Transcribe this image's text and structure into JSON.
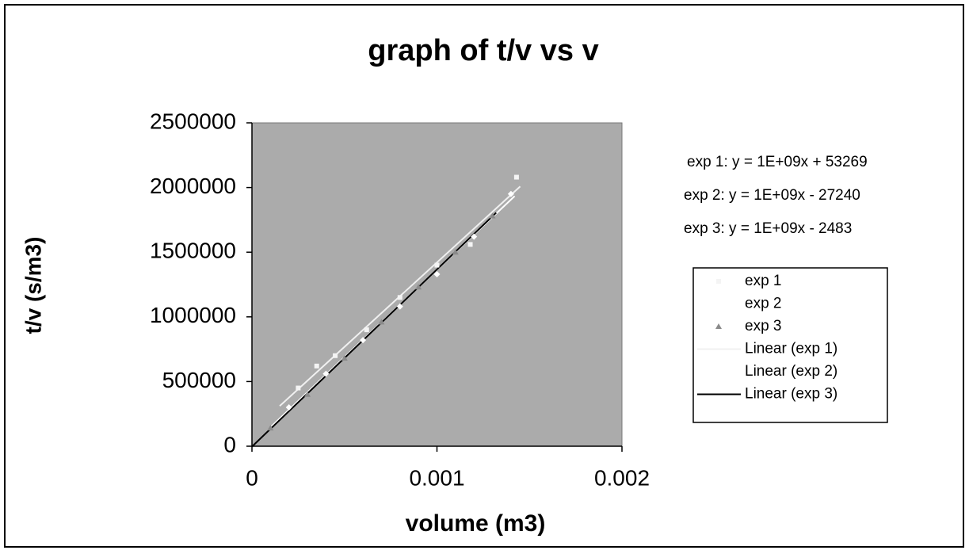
{
  "chart_data": {
    "type": "scatter",
    "title": "graph of t/v vs v",
    "x_label": "volume (m3)",
    "y_label": "t/v (s/m3)",
    "xlim": [
      0,
      0.002
    ],
    "xticks": [
      0,
      0.001,
      0.002
    ],
    "ylim": [
      0,
      2500000
    ],
    "yticks": [
      0,
      500000,
      1000000,
      1500000,
      2000000,
      2500000
    ],
    "plot_color": "#ababab",
    "annotations": [
      "exp 1: y = 1E+09x + 53269",
      "exp 2: y = 1E+09x - 27240",
      "exp 3: y = 1E+09x - 2483"
    ],
    "series": [
      {
        "name": "exp 1",
        "color": "#f4f4f4",
        "marker": "square",
        "trendline_name": "Linear (exp 1)",
        "trendline_color": "#f0f0f0",
        "x": [
          0.00025,
          0.00035,
          0.00045,
          0.00062,
          0.0008,
          0.001,
          0.00118,
          0.00143
        ],
        "values": [
          450000,
          620000,
          700000,
          900000,
          1150000,
          1400000,
          1560000,
          2080000
        ]
      },
      {
        "name": "exp 2",
        "color": "#ffffff",
        "marker": "diamond",
        "trendline_name": "Linear (exp 2)",
        "trendline_color": "#ffffff",
        "x": [
          0.0002,
          0.0004,
          0.0006,
          0.0008,
          0.001,
          0.0012,
          0.0014
        ],
        "values": [
          300000,
          560000,
          820000,
          1080000,
          1330000,
          1620000,
          1950000
        ]
      },
      {
        "name": "exp 3",
        "color": "#8a8a8a",
        "marker": "triangle",
        "trendline_name": "Linear (exp 3)",
        "trendline_color": "#000000",
        "x": [
          0.0001,
          0.0003,
          0.0005,
          0.0007,
          0.0009,
          0.0011,
          0.0013
        ],
        "values": [
          140000,
          400000,
          680000,
          960000,
          1230000,
          1500000,
          1780000
        ]
      }
    ]
  }
}
